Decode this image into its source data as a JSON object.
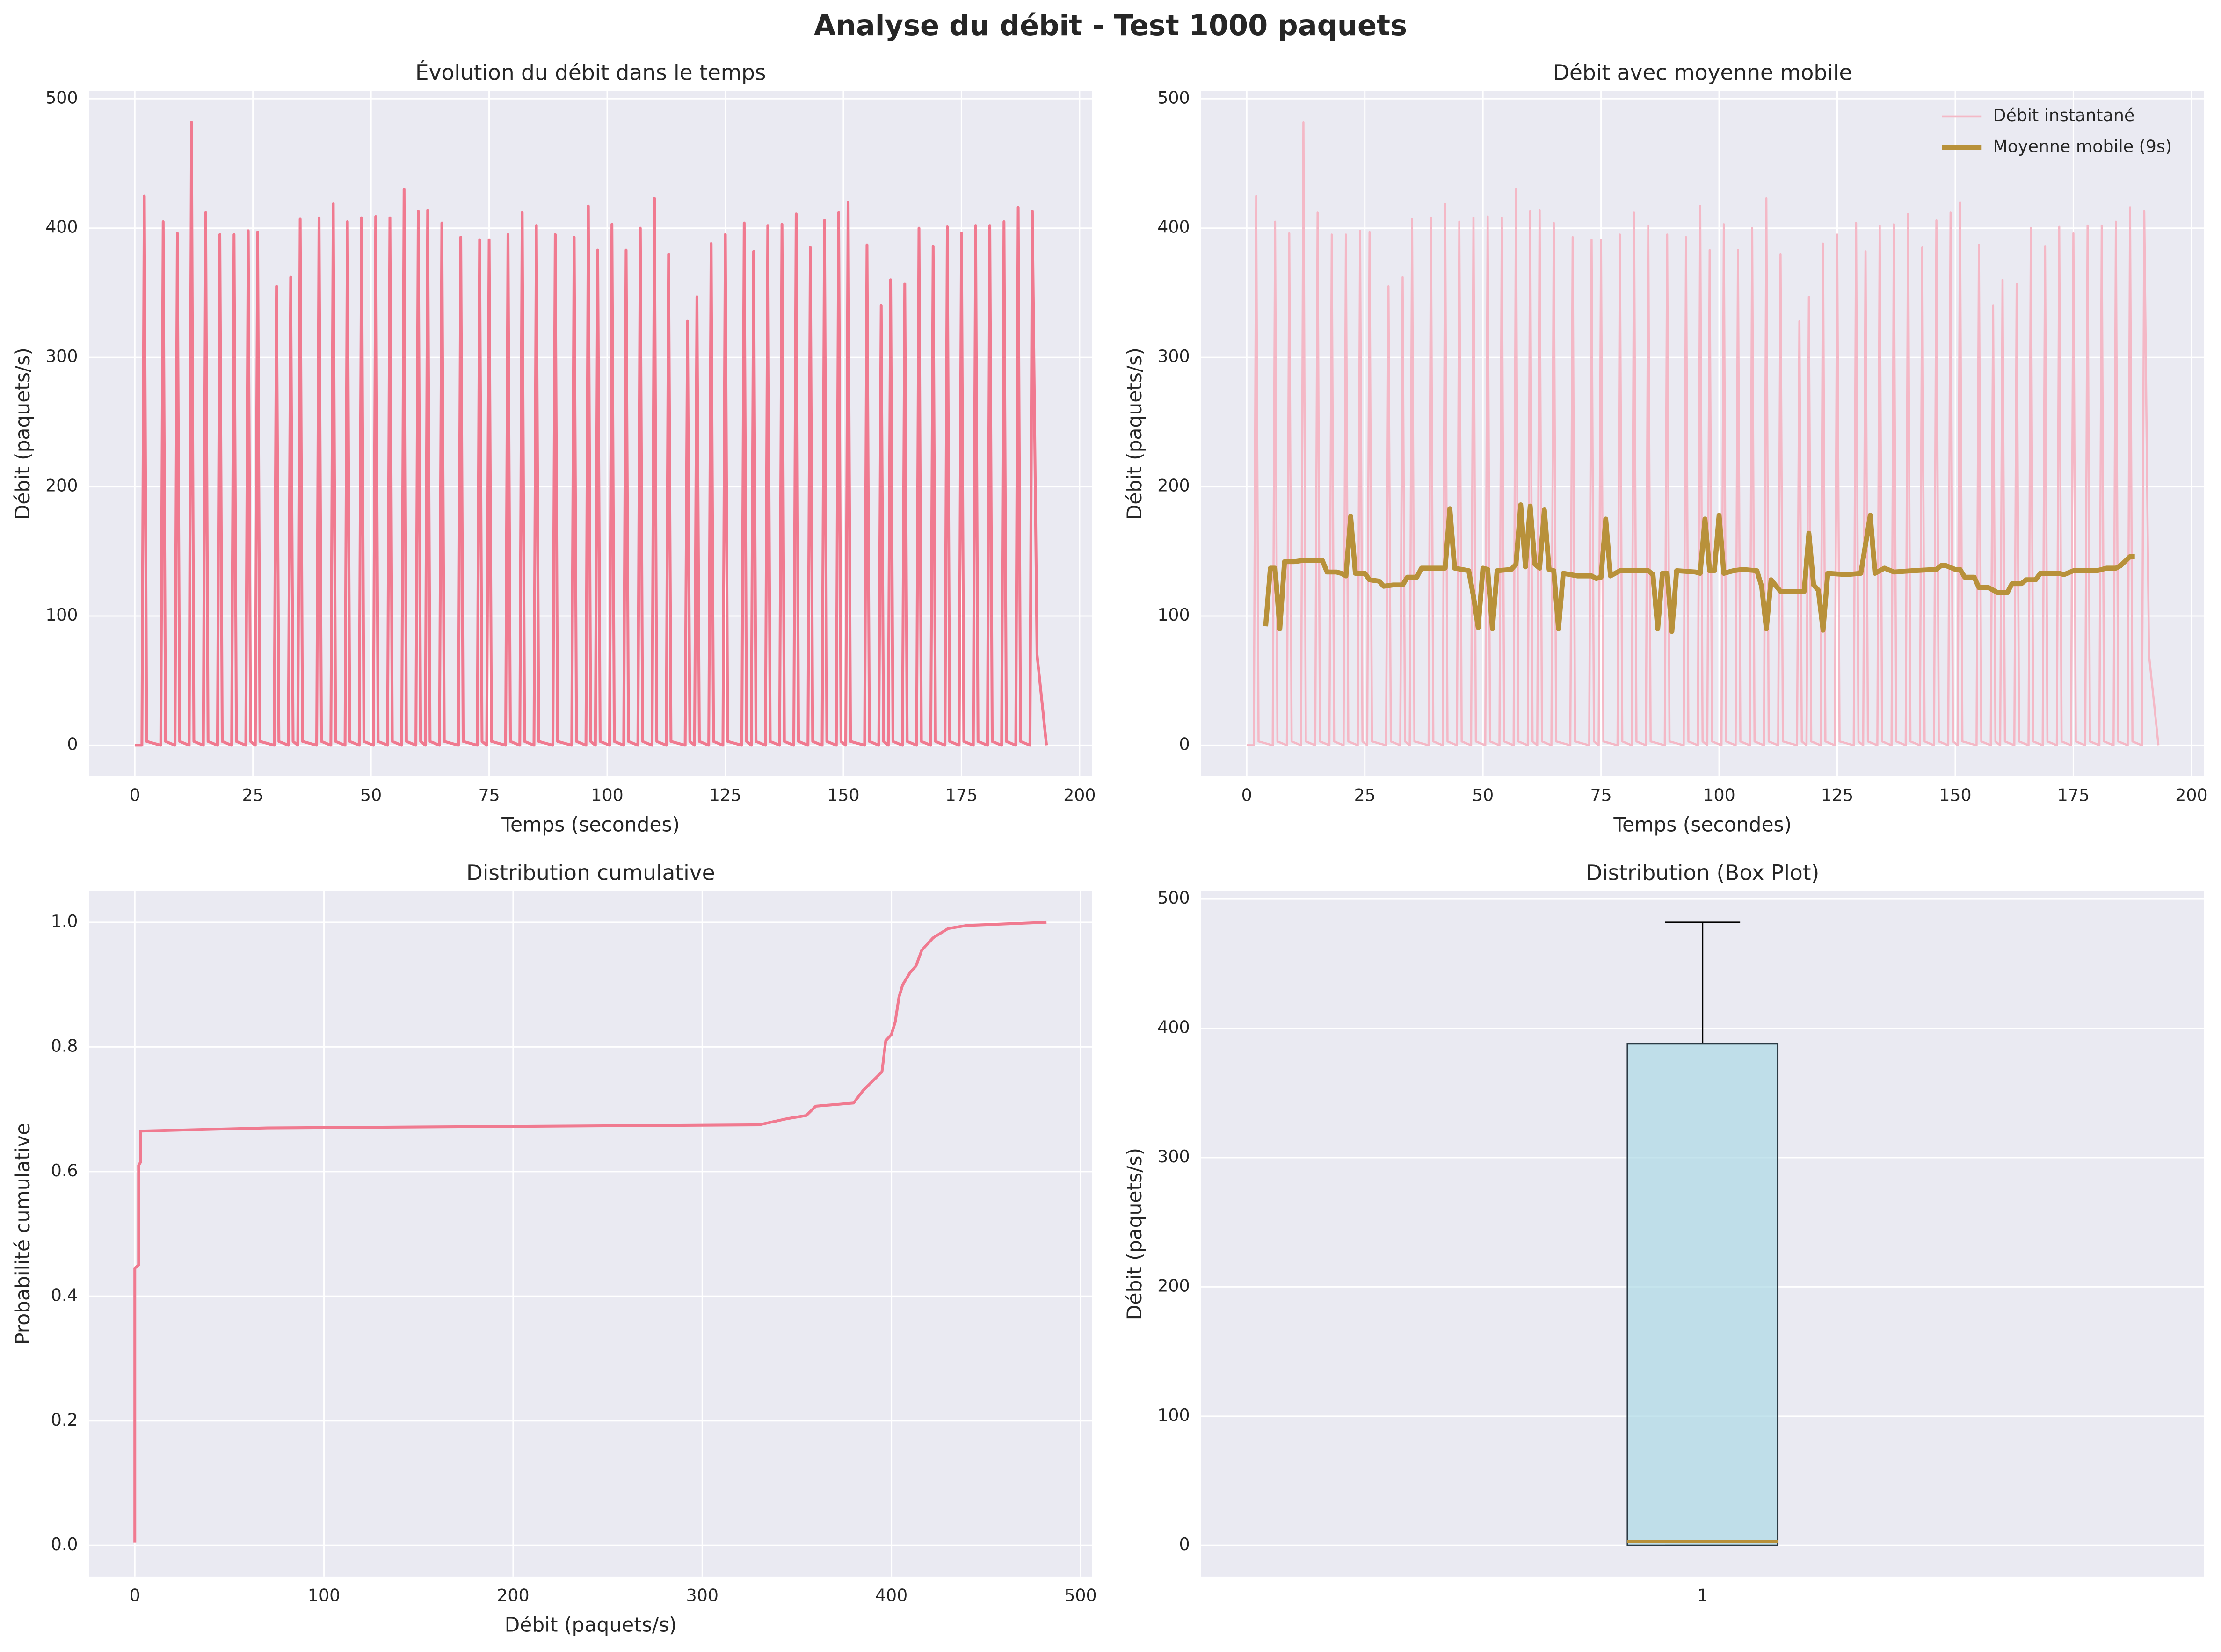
{
  "title": "Analyse du débit - Test 1000 paquets",
  "chart_data": [
    {
      "type": "line",
      "title": "Évolution du débit dans le temps",
      "xlabel": "Temps (secondes)",
      "ylabel": "Débit (paquets/s)",
      "color": "#f07a90",
      "grid": true,
      "xlim": [
        -9.65,
        202.65
      ],
      "xticks": [
        0,
        25,
        50,
        75,
        100,
        125,
        150,
        175,
        200
      ],
      "ylim": [
        -24.1,
        506.1
      ],
      "yticks": [
        0,
        100,
        200,
        300,
        400,
        500
      ],
      "x": [
        0,
        1,
        1.5,
        2,
        2.5,
        5.5,
        6,
        6.5,
        8.5,
        9,
        9.5,
        11.5,
        12,
        12.5,
        14.5,
        15,
        15.5,
        17.5,
        18,
        18.5,
        20.5,
        21,
        21.5,
        23.5,
        24,
        24.5,
        25.5,
        26,
        26.5,
        29.5,
        30,
        30.5,
        32.5,
        33,
        33.5,
        34.5,
        35,
        35.5,
        38.5,
        39,
        39.5,
        41.5,
        42,
        42.5,
        44.5,
        45,
        45.5,
        47.5,
        48,
        48.5,
        50.5,
        51,
        51.5,
        53.5,
        54,
        54.5,
        56.5,
        57,
        57.5,
        59.5,
        60,
        60.5,
        61.5,
        62,
        62.5,
        64.5,
        65,
        65.5,
        68.5,
        69,
        69.5,
        72.5,
        73,
        73.5,
        74.5,
        75,
        75.5,
        78.5,
        79,
        79.5,
        81.5,
        82,
        82.5,
        84.5,
        85,
        85.5,
        88.5,
        89,
        89.5,
        92.5,
        93,
        93.5,
        95.5,
        96,
        96.5,
        97.5,
        98,
        98.5,
        100.5,
        101,
        101.5,
        103.5,
        104,
        104.5,
        106.5,
        107,
        107.5,
        109.5,
        110,
        110.5,
        112.5,
        113,
        113.5,
        116.5,
        117,
        117.5,
        118.5,
        119,
        119.5,
        121.5,
        122,
        122.5,
        124.5,
        125,
        125.5,
        128.5,
        129,
        129.5,
        130.5,
        131,
        131.5,
        133.5,
        134,
        134.5,
        136.5,
        137,
        137.5,
        139.5,
        140,
        140.5,
        142.5,
        143,
        143.5,
        145.5,
        146,
        146.5,
        148.5,
        149,
        149.5,
        150.5,
        151,
        151.5,
        154.5,
        155,
        155.5,
        157.5,
        158,
        158.5,
        159.5,
        160,
        160.5,
        162.5,
        163,
        163.5,
        165.5,
        166,
        166.5,
        168.5,
        169,
        169.5,
        171.5,
        172,
        172.5,
        174.5,
        175,
        175.5,
        177.5,
        178,
        178.5,
        180.5,
        181,
        181.5,
        183.5,
        184,
        184.5,
        186.5,
        187,
        187.5,
        189.5,
        190,
        191,
        193
      ],
      "values": [
        0,
        0,
        0,
        425,
        3,
        0,
        405,
        3,
        0,
        396,
        3,
        0,
        482,
        3,
        0,
        412,
        3,
        0,
        395,
        3,
        0,
        395,
        3,
        0,
        398,
        3,
        0,
        397,
        3,
        0,
        355,
        3,
        0,
        362,
        3,
        0,
        407,
        3,
        0,
        408,
        3,
        0,
        419,
        3,
        0,
        405,
        3,
        0,
        408,
        3,
        0,
        409,
        3,
        0,
        408,
        3,
        0,
        430,
        3,
        0,
        413,
        3,
        0,
        414,
        3,
        0,
        404,
        3,
        0,
        393,
        3,
        0,
        391,
        3,
        0,
        391,
        3,
        0,
        395,
        3,
        0,
        412,
        3,
        0,
        402,
        3,
        0,
        395,
        3,
        0,
        393,
        3,
        0,
        417,
        3,
        0,
        383,
        3,
        0,
        403,
        3,
        0,
        383,
        3,
        0,
        400,
        3,
        0,
        423,
        3,
        0,
        380,
        3,
        0,
        328,
        3,
        0,
        347,
        3,
        0,
        388,
        3,
        0,
        395,
        3,
        0,
        404,
        3,
        0,
        382,
        3,
        0,
        402,
        3,
        0,
        403,
        3,
        0,
        411,
        3,
        0,
        385,
        3,
        0,
        406,
        3,
        0,
        412,
        3,
        0,
        420,
        3,
        0,
        387,
        3,
        0,
        340,
        3,
        0,
        360,
        3,
        0,
        357,
        3,
        0,
        400,
        3,
        0,
        386,
        3,
        0,
        401,
        3,
        0,
        396,
        3,
        0,
        402,
        3,
        0,
        402,
        3,
        0,
        405,
        3,
        0,
        416,
        3,
        0,
        413,
        70,
        0
      ]
    },
    {
      "type": "line",
      "title": "Débit avec moyenne mobile",
      "xlabel": "Temps (secondes)",
      "ylabel": "Débit (paquets/s)",
      "grid": true,
      "legend": "upper right",
      "xlim": [
        -9.65,
        202.65
      ],
      "xticks": [
        0,
        25,
        50,
        75,
        100,
        125,
        150,
        175,
        200
      ],
      "ylim": [
        -24.1,
        506.1
      ],
      "yticks": [
        0,
        100,
        200,
        300,
        400,
        500
      ],
      "series": [
        {
          "name": "Débit instantané",
          "color": "#f4b8c6",
          "width": 1.5,
          "x": [
            0,
            1,
            1.5,
            2,
            2.5,
            5.5,
            6,
            6.5,
            8.5,
            9,
            9.5,
            11.5,
            12,
            12.5,
            14.5,
            15,
            15.5,
            17.5,
            18,
            18.5,
            20.5,
            21,
            21.5,
            23.5,
            24,
            24.5,
            25.5,
            26,
            26.5,
            29.5,
            30,
            30.5,
            32.5,
            33,
            33.5,
            34.5,
            35,
            35.5,
            38.5,
            39,
            39.5,
            41.5,
            42,
            42.5,
            44.5,
            45,
            45.5,
            47.5,
            48,
            48.5,
            50.5,
            51,
            51.5,
            53.5,
            54,
            54.5,
            56.5,
            57,
            57.5,
            59.5,
            60,
            60.5,
            61.5,
            62,
            62.5,
            64.5,
            65,
            65.5,
            68.5,
            69,
            69.5,
            72.5,
            73,
            73.5,
            74.5,
            75,
            75.5,
            78.5,
            79,
            79.5,
            81.5,
            82,
            82.5,
            84.5,
            85,
            85.5,
            88.5,
            89,
            89.5,
            92.5,
            93,
            93.5,
            95.5,
            96,
            96.5,
            97.5,
            98,
            98.5,
            100.5,
            101,
            101.5,
            103.5,
            104,
            104.5,
            106.5,
            107,
            107.5,
            109.5,
            110,
            110.5,
            112.5,
            113,
            113.5,
            116.5,
            117,
            117.5,
            118.5,
            119,
            119.5,
            121.5,
            122,
            122.5,
            124.5,
            125,
            125.5,
            128.5,
            129,
            129.5,
            130.5,
            131,
            131.5,
            133.5,
            134,
            134.5,
            136.5,
            137,
            137.5,
            139.5,
            140,
            140.5,
            142.5,
            143,
            143.5,
            145.5,
            146,
            146.5,
            148.5,
            149,
            149.5,
            150.5,
            151,
            151.5,
            154.5,
            155,
            155.5,
            157.5,
            158,
            158.5,
            159.5,
            160,
            160.5,
            162.5,
            163,
            163.5,
            165.5,
            166,
            166.5,
            168.5,
            169,
            169.5,
            171.5,
            172,
            172.5,
            174.5,
            175,
            175.5,
            177.5,
            178,
            178.5,
            180.5,
            181,
            181.5,
            183.5,
            184,
            184.5,
            186.5,
            187,
            187.5,
            189.5,
            190,
            191,
            193
          ],
          "values": [
            0,
            0,
            0,
            425,
            3,
            0,
            405,
            3,
            0,
            396,
            3,
            0,
            482,
            3,
            0,
            412,
            3,
            0,
            395,
            3,
            0,
            395,
            3,
            0,
            398,
            3,
            0,
            397,
            3,
            0,
            355,
            3,
            0,
            362,
            3,
            0,
            407,
            3,
            0,
            408,
            3,
            0,
            419,
            3,
            0,
            405,
            3,
            0,
            408,
            3,
            0,
            409,
            3,
            0,
            408,
            3,
            0,
            430,
            3,
            0,
            413,
            3,
            0,
            414,
            3,
            0,
            404,
            3,
            0,
            393,
            3,
            0,
            391,
            3,
            0,
            391,
            3,
            0,
            395,
            3,
            0,
            412,
            3,
            0,
            402,
            3,
            0,
            395,
            3,
            0,
            393,
            3,
            0,
            417,
            3,
            0,
            383,
            3,
            0,
            403,
            3,
            0,
            383,
            3,
            0,
            400,
            3,
            0,
            423,
            3,
            0,
            380,
            3,
            0,
            328,
            3,
            0,
            347,
            3,
            0,
            388,
            3,
            0,
            395,
            3,
            0,
            404,
            3,
            0,
            382,
            3,
            0,
            402,
            3,
            0,
            403,
            3,
            0,
            411,
            3,
            0,
            385,
            3,
            0,
            406,
            3,
            0,
            412,
            3,
            0,
            420,
            3,
            0,
            387,
            3,
            0,
            340,
            3,
            0,
            360,
            3,
            0,
            357,
            3,
            0,
            400,
            3,
            0,
            386,
            3,
            0,
            401,
            3,
            0,
            396,
            3,
            0,
            402,
            3,
            0,
            402,
            3,
            0,
            405,
            3,
            0,
            416,
            3,
            0,
            413,
            70,
            0
          ]
        },
        {
          "name": "Moyenne mobile (9s)",
          "color": "#b8913a",
          "width": 3.5,
          "x": [
            4,
            5,
            6,
            7,
            8,
            10,
            12,
            14,
            16,
            17,
            19,
            20,
            21,
            22,
            23,
            25,
            26,
            28,
            29,
            31,
            33,
            34,
            36,
            37,
            41,
            42,
            43,
            44,
            47,
            48,
            49,
            50,
            51,
            52,
            53,
            56,
            57,
            58,
            59,
            60,
            61,
            62,
            63,
            64,
            65,
            66,
            67,
            70,
            73,
            74,
            75,
            76,
            77,
            79,
            85,
            86,
            87,
            88,
            89,
            90,
            91,
            95,
            96,
            97,
            98,
            99,
            100,
            101,
            103,
            105,
            108,
            109,
            110,
            111,
            113,
            115,
            117,
            118,
            119,
            120,
            121,
            122,
            123,
            127,
            130,
            132,
            133,
            135,
            137,
            141,
            146,
            147,
            148,
            150,
            151,
            152,
            154,
            155,
            157,
            159,
            161,
            162,
            164,
            165,
            167,
            168,
            172,
            173,
            175,
            180,
            182,
            184,
            185,
            187,
            188
          ],
          "values": [
            92,
            137,
            137,
            90,
            142,
            142,
            143,
            143,
            143,
            134,
            134,
            133,
            131,
            177,
            133,
            133,
            128,
            127,
            123,
            124,
            124,
            130,
            130,
            137,
            137,
            137,
            183,
            137,
            135,
            115,
            91,
            137,
            136,
            90,
            135,
            136,
            140,
            186,
            138,
            185,
            140,
            137,
            182,
            136,
            135,
            90,
            133,
            131,
            131,
            129,
            130,
            175,
            131,
            135,
            135,
            132,
            90,
            133,
            133,
            88,
            135,
            134,
            133,
            175,
            135,
            135,
            178,
            133,
            135,
            136,
            135,
            123,
            90,
            128,
            119,
            119,
            119,
            119,
            164,
            124,
            120,
            89,
            133,
            132,
            133,
            178,
            133,
            137,
            134,
            135,
            136,
            139,
            139,
            136,
            136,
            130,
            130,
            122,
            122,
            118,
            118,
            125,
            125,
            128,
            128,
            133,
            133,
            132,
            135,
            135,
            137,
            137,
            139,
            146,
            146
          ]
        }
      ]
    },
    {
      "type": "line",
      "title": "Distribution cumulative",
      "xlabel": "Débit (paquets/s)",
      "ylabel": "Probabilité cumulative",
      "color": "#f07a90",
      "grid": true,
      "xlim": [
        -24.1,
        506.1
      ],
      "xticks": [
        0,
        100,
        200,
        300,
        400,
        500
      ],
      "ylim": [
        -0.05,
        1.05
      ],
      "yticks": [
        {
          "value": 0,
          "label": "0.0"
        },
        0.2,
        0.4,
        0.6,
        0.8,
        {
          "value": 1,
          "label": "1.0"
        }
      ],
      "x": [
        0,
        0,
        2,
        2,
        3,
        3,
        70,
        330,
        345,
        355,
        360,
        380,
        385,
        390,
        395,
        397,
        400,
        402,
        404,
        406,
        410,
        413,
        416,
        422,
        430,
        440,
        482
      ],
      "values": [
        0.005,
        0.445,
        0.45,
        0.61,
        0.615,
        0.665,
        0.67,
        0.675,
        0.685,
        0.69,
        0.705,
        0.71,
        0.73,
        0.745,
        0.76,
        0.81,
        0.82,
        0.84,
        0.88,
        0.9,
        0.92,
        0.93,
        0.955,
        0.975,
        0.99,
        0.995,
        1.0
      ]
    },
    {
      "type": "box",
      "title": "Distribution (Box Plot)",
      "ylabel": "Débit (paquets/s)",
      "grid": true,
      "categories": [
        "1"
      ],
      "xlim": [
        0.5,
        1.5
      ],
      "ylim": [
        -24.1,
        506.1
      ],
      "yticks": [
        0,
        100,
        200,
        300,
        400,
        500
      ],
      "color": "#add8e6",
      "median_color": "#b8913a",
      "whislo": 0,
      "q1": 0,
      "median": 3,
      "q3": 388,
      "whishi": 482
    }
  ]
}
